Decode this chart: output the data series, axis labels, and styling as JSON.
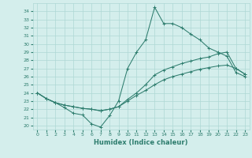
{
  "title": "",
  "xlabel": "Humidex (Indice chaleur)",
  "ylabel": "",
  "xlim": [
    -0.5,
    23.5
  ],
  "ylim": [
    19.5,
    35.0
  ],
  "yticks": [
    20,
    21,
    22,
    23,
    24,
    25,
    26,
    27,
    28,
    29,
    30,
    31,
    32,
    33,
    34
  ],
  "xticks": [
    0,
    1,
    2,
    3,
    4,
    5,
    6,
    7,
    8,
    9,
    10,
    11,
    12,
    13,
    14,
    15,
    16,
    17,
    18,
    19,
    20,
    21,
    22,
    23
  ],
  "bg_color": "#d4eeec",
  "grid_color": "#aed8d4",
  "line_color": "#2e7d6e",
  "series1_x": [
    0,
    1,
    2,
    3,
    4,
    5,
    6,
    7,
    8,
    9,
    10,
    11,
    12,
    13,
    14,
    15,
    16,
    17,
    18,
    19,
    20,
    21,
    22,
    23
  ],
  "series1_y": [
    24.0,
    23.3,
    22.8,
    22.2,
    21.5,
    21.3,
    20.2,
    19.8,
    21.2,
    23.0,
    27.0,
    29.0,
    30.5,
    34.5,
    32.5,
    32.5,
    32.0,
    31.2,
    30.5,
    29.5,
    29.0,
    28.5,
    26.5,
    26.0
  ],
  "series2_x": [
    0,
    1,
    2,
    3,
    4,
    5,
    6,
    7,
    8,
    9,
    10,
    11,
    12,
    13,
    14,
    15,
    16,
    17,
    18,
    19,
    20,
    21,
    22,
    23
  ],
  "series2_y": [
    24.0,
    23.3,
    22.8,
    22.5,
    22.3,
    22.1,
    22.0,
    21.8,
    22.0,
    22.3,
    23.2,
    24.0,
    25.0,
    26.2,
    26.8,
    27.2,
    27.6,
    27.9,
    28.2,
    28.4,
    28.8,
    29.0,
    27.0,
    26.3
  ],
  "series3_x": [
    0,
    1,
    2,
    3,
    4,
    5,
    6,
    7,
    8,
    9,
    10,
    11,
    12,
    13,
    14,
    15,
    16,
    17,
    18,
    19,
    20,
    21,
    22,
    23
  ],
  "series3_y": [
    24.0,
    23.3,
    22.8,
    22.5,
    22.3,
    22.1,
    22.0,
    21.8,
    22.0,
    22.3,
    23.0,
    23.7,
    24.3,
    25.0,
    25.6,
    26.0,
    26.3,
    26.6,
    26.9,
    27.1,
    27.3,
    27.4,
    27.0,
    26.3
  ],
  "marker": "+",
  "tick_fontsize": 4.5,
  "xlabel_fontsize": 6,
  "lw": 0.75,
  "ms": 2.5,
  "mew": 0.7
}
